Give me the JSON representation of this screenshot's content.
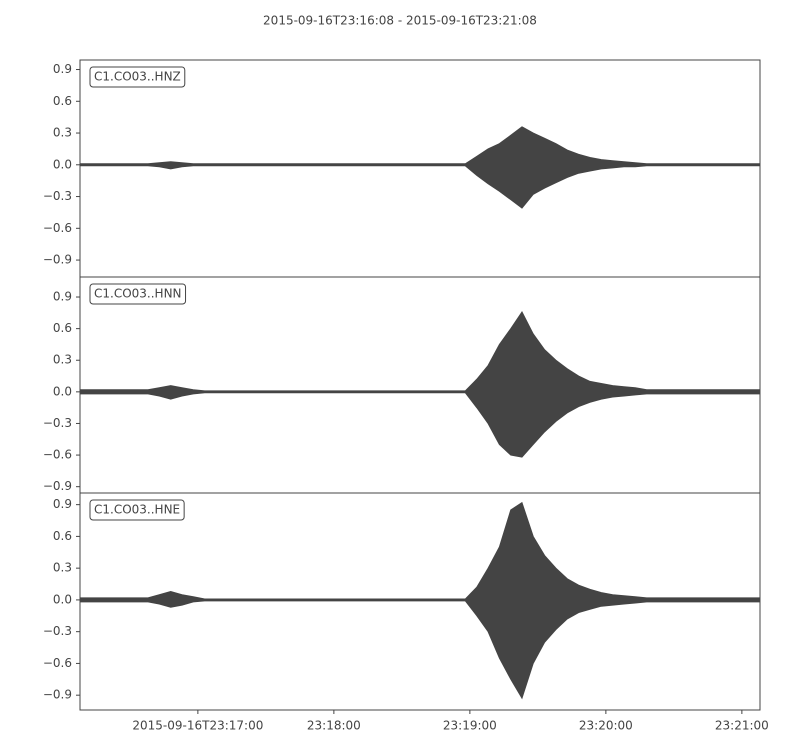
{
  "chart_data": [
    {
      "type": "area",
      "title": "2015-09-16T23:16:08  -  2015-09-16T23:21:08",
      "label": "C1.CO03..HNZ",
      "color": "#444444",
      "x": [
        0,
        5,
        10,
        15,
        20,
        25,
        30,
        35,
        40,
        45,
        50,
        55,
        60,
        65,
        70,
        75,
        80,
        85,
        90,
        95,
        100,
        105,
        110,
        115,
        120,
        125,
        130,
        135,
        140,
        145,
        150,
        155,
        160,
        165,
        170,
        175,
        180,
        185,
        190,
        195,
        200,
        205,
        210,
        215,
        220,
        225,
        230,
        235,
        240,
        245,
        250,
        255,
        260,
        265,
        270,
        275,
        280,
        285,
        290,
        295,
        300
      ],
      "high": [
        0.01,
        0.01,
        0.01,
        0.01,
        0.01,
        0.01,
        0.01,
        0.02,
        0.03,
        0.02,
        0.01,
        0.01,
        0.01,
        0.01,
        0.01,
        0.01,
        0.01,
        0.01,
        0.01,
        0.01,
        0.01,
        0.01,
        0.01,
        0.01,
        0.01,
        0.01,
        0.01,
        0.01,
        0.01,
        0.01,
        0.01,
        0.01,
        0.01,
        0.01,
        0.01,
        0.08,
        0.15,
        0.2,
        0.28,
        0.36,
        0.3,
        0.25,
        0.2,
        0.14,
        0.1,
        0.07,
        0.05,
        0.04,
        0.03,
        0.02,
        0.01,
        0.01,
        0.01,
        0.01,
        0.01,
        0.01,
        0.01,
        0.01,
        0.01,
        0.01,
        0.01
      ],
      "low": [
        -0.01,
        -0.01,
        -0.01,
        -0.01,
        -0.01,
        -0.01,
        -0.01,
        -0.02,
        -0.04,
        -0.02,
        -0.01,
        -0.01,
        -0.01,
        -0.01,
        -0.01,
        -0.01,
        -0.01,
        -0.01,
        -0.01,
        -0.01,
        -0.01,
        -0.01,
        -0.01,
        -0.01,
        -0.01,
        -0.01,
        -0.01,
        -0.01,
        -0.01,
        -0.01,
        -0.01,
        -0.01,
        -0.01,
        -0.01,
        -0.01,
        -0.1,
        -0.18,
        -0.25,
        -0.33,
        -0.41,
        -0.28,
        -0.22,
        -0.17,
        -0.12,
        -0.08,
        -0.06,
        -0.04,
        -0.03,
        -0.02,
        -0.02,
        -0.01,
        -0.01,
        -0.01,
        -0.01,
        -0.01,
        -0.01,
        -0.01,
        -0.01,
        -0.01,
        -0.01,
        -0.01
      ],
      "xlim": [
        0,
        300
      ],
      "ylim": [
        -1.06,
        0.99
      ],
      "yticks": [
        {
          "value": -0.9,
          "label": "−0.9"
        },
        {
          "value": -0.6,
          "label": "−0.6"
        },
        {
          "value": -0.3,
          "label": "−0.3"
        },
        {
          "value": 0,
          "label": "0.0"
        },
        0.3,
        0.6,
        0.9
      ]
    },
    {
      "type": "area",
      "label": "C1.CO03..HNN",
      "color": "#444444",
      "x": [
        0,
        5,
        10,
        15,
        20,
        25,
        30,
        35,
        40,
        45,
        50,
        55,
        60,
        65,
        70,
        75,
        80,
        85,
        90,
        95,
        100,
        105,
        110,
        115,
        120,
        125,
        130,
        135,
        140,
        145,
        150,
        155,
        160,
        165,
        170,
        175,
        180,
        185,
        190,
        195,
        200,
        205,
        210,
        215,
        220,
        225,
        230,
        235,
        240,
        245,
        250,
        255,
        260,
        265,
        270,
        275,
        280,
        285,
        290,
        295,
        300
      ],
      "high": [
        0.02,
        0.02,
        0.02,
        0.02,
        0.02,
        0.02,
        0.02,
        0.04,
        0.06,
        0.04,
        0.02,
        0.01,
        0.01,
        0.01,
        0.01,
        0.01,
        0.01,
        0.01,
        0.01,
        0.01,
        0.01,
        0.01,
        0.01,
        0.01,
        0.01,
        0.01,
        0.01,
        0.01,
        0.01,
        0.01,
        0.01,
        0.01,
        0.01,
        0.01,
        0.01,
        0.12,
        0.25,
        0.45,
        0.6,
        0.76,
        0.55,
        0.4,
        0.3,
        0.22,
        0.15,
        0.1,
        0.08,
        0.06,
        0.05,
        0.04,
        0.02,
        0.02,
        0.02,
        0.02,
        0.02,
        0.02,
        0.02,
        0.02,
        0.02,
        0.02,
        0.02
      ],
      "low": [
        -0.02,
        -0.02,
        -0.02,
        -0.02,
        -0.02,
        -0.02,
        -0.02,
        -0.04,
        -0.07,
        -0.04,
        -0.02,
        -0.01,
        -0.01,
        -0.01,
        -0.01,
        -0.01,
        -0.01,
        -0.01,
        -0.01,
        -0.01,
        -0.01,
        -0.01,
        -0.01,
        -0.01,
        -0.01,
        -0.01,
        -0.01,
        -0.01,
        -0.01,
        -0.01,
        -0.01,
        -0.01,
        -0.01,
        -0.01,
        -0.01,
        -0.15,
        -0.3,
        -0.5,
        -0.6,
        -0.62,
        -0.5,
        -0.38,
        -0.28,
        -0.2,
        -0.14,
        -0.1,
        -0.07,
        -0.05,
        -0.04,
        -0.03,
        -0.02,
        -0.02,
        -0.02,
        -0.02,
        -0.02,
        -0.02,
        -0.02,
        -0.02,
        -0.02,
        -0.02,
        -0.02
      ],
      "xlim": [
        0,
        300
      ],
      "ylim": [
        -0.96,
        1.09
      ],
      "yticks": [
        {
          "value": -0.9,
          "label": "−0.9"
        },
        {
          "value": -0.6,
          "label": "−0.6"
        },
        {
          "value": -0.3,
          "label": "−0.3"
        },
        {
          "value": 0,
          "label": "0.0"
        },
        0.3,
        0.6,
        0.9
      ]
    },
    {
      "type": "area",
      "label": "C1.CO03..HNE",
      "color": "#444444",
      "x": [
        0,
        5,
        10,
        15,
        20,
        25,
        30,
        35,
        40,
        45,
        50,
        55,
        60,
        65,
        70,
        75,
        80,
        85,
        90,
        95,
        100,
        105,
        110,
        115,
        120,
        125,
        130,
        135,
        140,
        145,
        150,
        155,
        160,
        165,
        170,
        175,
        180,
        185,
        190,
        195,
        200,
        205,
        210,
        215,
        220,
        225,
        230,
        235,
        240,
        245,
        250,
        255,
        260,
        265,
        270,
        275,
        280,
        285,
        290,
        295,
        300
      ],
      "high": [
        0.02,
        0.02,
        0.02,
        0.02,
        0.02,
        0.02,
        0.02,
        0.05,
        0.08,
        0.05,
        0.03,
        0.01,
        0.01,
        0.01,
        0.01,
        0.01,
        0.01,
        0.01,
        0.01,
        0.01,
        0.01,
        0.01,
        0.01,
        0.01,
        0.01,
        0.01,
        0.01,
        0.01,
        0.01,
        0.01,
        0.01,
        0.01,
        0.01,
        0.01,
        0.01,
        0.12,
        0.3,
        0.5,
        0.85,
        0.92,
        0.6,
        0.42,
        0.3,
        0.2,
        0.14,
        0.1,
        0.07,
        0.05,
        0.04,
        0.03,
        0.02,
        0.02,
        0.02,
        0.02,
        0.02,
        0.02,
        0.02,
        0.02,
        0.02,
        0.02,
        0.02
      ],
      "low": [
        -0.02,
        -0.02,
        -0.02,
        -0.02,
        -0.02,
        -0.02,
        -0.02,
        -0.04,
        -0.07,
        -0.05,
        -0.02,
        -0.01,
        -0.01,
        -0.01,
        -0.01,
        -0.01,
        -0.01,
        -0.01,
        -0.01,
        -0.01,
        -0.01,
        -0.01,
        -0.01,
        -0.01,
        -0.01,
        -0.01,
        -0.01,
        -0.01,
        -0.01,
        -0.01,
        -0.01,
        -0.01,
        -0.01,
        -0.01,
        -0.01,
        -0.15,
        -0.3,
        -0.55,
        -0.75,
        -0.93,
        -0.6,
        -0.4,
        -0.28,
        -0.18,
        -0.12,
        -0.09,
        -0.06,
        -0.05,
        -0.04,
        -0.03,
        -0.02,
        -0.02,
        -0.02,
        -0.02,
        -0.02,
        -0.02,
        -0.02,
        -0.02,
        -0.02,
        -0.02,
        -0.02
      ],
      "xlim": [
        0,
        300
      ],
      "ylim": [
        -1.04,
        1.01
      ],
      "yticks": [
        {
          "value": -0.9,
          "label": "−0.9"
        },
        {
          "value": -0.6,
          "label": "−0.6"
        },
        {
          "value": -0.3,
          "label": "−0.3"
        },
        {
          "value": 0,
          "label": "0.0"
        },
        0.3,
        0.6,
        0.9
      ],
      "xticks": [
        {
          "value": 52,
          "label": "2015-09-16T23:17:00"
        },
        {
          "value": 112,
          "label": "23:18:00"
        },
        {
          "value": 172,
          "label": "23:19:00"
        },
        {
          "value": 232,
          "label": "23:20:00"
        },
        {
          "value": 292,
          "label": "23:21:00"
        }
      ]
    }
  ]
}
